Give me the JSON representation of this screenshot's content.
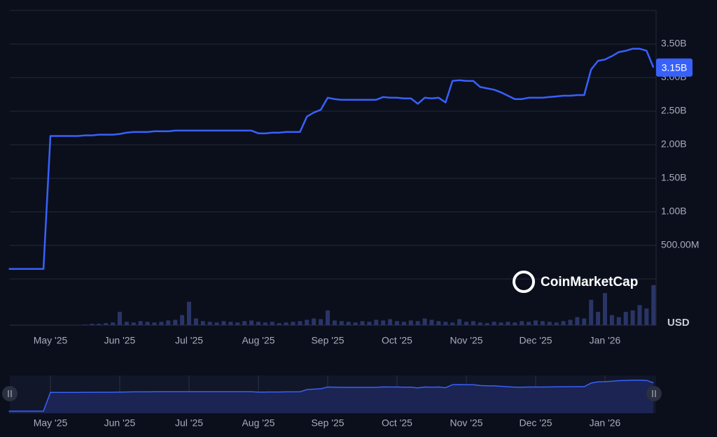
{
  "chart_data": {
    "type": "line",
    "categories": [
      null,
      null,
      null,
      null,
      null,
      null,
      "May '25",
      null,
      null,
      null,
      null,
      null,
      null,
      null,
      null,
      null,
      "Jun '25",
      null,
      null,
      null,
      null,
      null,
      null,
      null,
      null,
      null,
      "Jul '25",
      null,
      null,
      null,
      null,
      null,
      null,
      null,
      null,
      null,
      "Aug '25",
      null,
      null,
      null,
      null,
      null,
      null,
      null,
      null,
      null,
      "Sep '25",
      null,
      null,
      null,
      null,
      null,
      null,
      null,
      null,
      null,
      "Oct '25",
      null,
      null,
      null,
      null,
      null,
      null,
      null,
      null,
      null,
      "Nov '25",
      null,
      null,
      null,
      null,
      null,
      null,
      null,
      null,
      null,
      "Dec '25",
      null,
      null,
      null,
      null,
      null,
      null,
      null,
      null,
      null,
      "Jan '26",
      null,
      null,
      null,
      null,
      null,
      null,
      null
    ],
    "series": [
      {
        "color": "#3861fb",
        "values": [
          0.15,
          0.15,
          0.15,
          0.15,
          0.15,
          0.15,
          2.13,
          2.13,
          2.13,
          2.13,
          2.13,
          2.14,
          2.14,
          2.15,
          2.15,
          2.15,
          2.16,
          2.18,
          2.19,
          2.19,
          2.19,
          2.2,
          2.2,
          2.2,
          2.21,
          2.21,
          2.21,
          2.21,
          2.21,
          2.21,
          2.21,
          2.21,
          2.21,
          2.21,
          2.21,
          2.21,
          2.17,
          2.17,
          2.18,
          2.18,
          2.19,
          2.19,
          2.19,
          2.42,
          2.48,
          2.52,
          2.7,
          2.68,
          2.67,
          2.67,
          2.67,
          2.67,
          2.67,
          2.67,
          2.71,
          2.7,
          2.7,
          2.69,
          2.69,
          2.61,
          2.7,
          2.69,
          2.7,
          2.63,
          2.95,
          2.96,
          2.95,
          2.95,
          2.86,
          2.84,
          2.82,
          2.78,
          2.73,
          2.68,
          2.68,
          2.7,
          2.7,
          2.7,
          2.71,
          2.72,
          2.73,
          2.73,
          2.74,
          2.74,
          3.12,
          3.25,
          3.27,
          3.32,
          3.38,
          3.4,
          3.43,
          3.43,
          3.4,
          3.15
        ]
      }
    ],
    "volume": {
      "values": [
        0,
        0,
        0,
        0,
        0,
        0,
        0,
        0,
        0,
        0,
        0,
        1,
        2,
        2,
        3,
        4,
        20,
        5,
        4,
        6,
        5,
        4,
        5,
        7,
        8,
        15,
        35,
        10,
        6,
        5,
        4,
        6,
        5,
        4,
        6,
        7,
        5,
        4,
        5,
        3,
        4,
        5,
        6,
        8,
        10,
        9,
        22,
        7,
        6,
        5,
        4,
        6,
        5,
        8,
        7,
        9,
        6,
        5,
        7,
        6,
        10,
        8,
        6,
        5,
        4,
        9,
        5,
        6,
        4,
        3,
        5,
        4,
        5,
        4,
        6,
        5,
        7,
        6,
        5,
        4,
        6,
        8,
        12,
        10,
        38,
        20,
        48,
        15,
        12,
        20,
        22,
        30,
        25,
        60
      ],
      "color": "#2a3566"
    },
    "volume_ylim": [
      0,
      65
    ],
    "ylim": [
      0,
      4
    ],
    "yticks": [
      {
        "value": 0.5,
        "label": "500.00M"
      },
      {
        "value": 1,
        "label": "1.00B"
      },
      {
        "value": 1.5,
        "label": "1.50B"
      },
      {
        "value": 2,
        "label": "2.00B"
      },
      {
        "value": 2.5,
        "label": "2.50B"
      },
      {
        "value": 3,
        "label": "3.00B"
      },
      {
        "value": 3.5,
        "label": "3.50B"
      }
    ],
    "grid": true,
    "current_value": {
      "value": 3.15,
      "label": "3.15B"
    },
    "currency": "USD",
    "watermark": "CoinMarketCap"
  }
}
